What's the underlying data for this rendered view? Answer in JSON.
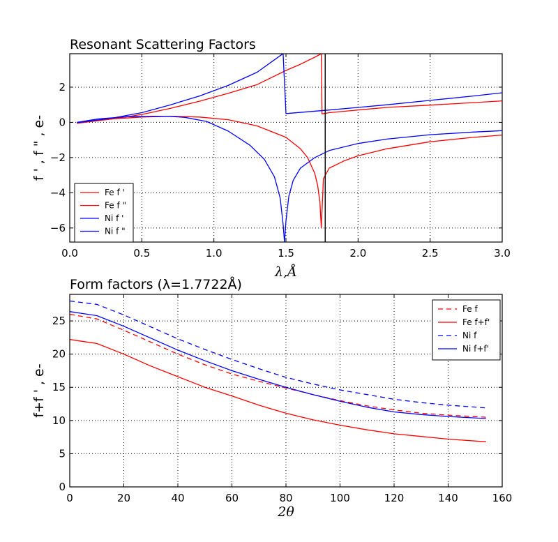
{
  "chart_data": [
    {
      "type": "line",
      "title": "Resonant Scattering Factors",
      "xlabel": "λ,Å",
      "ylabel": "f ' , f \" , e-",
      "xlim": [
        0.0,
        3.0
      ],
      "ylim": [
        -6.8,
        3.9
      ],
      "xticks": [
        0.0,
        0.5,
        1.0,
        1.5,
        2.0,
        2.5,
        3.0
      ],
      "xtick_labels": [
        "0.0",
        "0.5",
        "1.0",
        "1.5",
        "2.0",
        "2.5",
        "3.0"
      ],
      "yticks": [
        -6,
        -4,
        -2,
        0,
        2
      ],
      "ytick_labels": [
        "−6",
        "−4",
        "−2",
        "0",
        "2"
      ],
      "grid": true,
      "legend_position": "bottom-left",
      "vertical_line": {
        "x": 1.7722
      },
      "series": [
        {
          "name": "Fe f '",
          "color": "#ff0000",
          "style": "solid",
          "x": [
            0.05,
            0.3,
            0.5,
            0.7,
            0.9,
            1.1,
            1.3,
            1.5,
            1.6,
            1.65,
            1.7,
            1.72,
            1.735,
            1.745,
            1.76,
            1.8,
            1.9,
            2.0,
            2.2,
            2.5,
            2.8,
            3.0
          ],
          "y": [
            -0.05,
            0.2,
            0.3,
            0.35,
            0.3,
            0.15,
            -0.2,
            -0.85,
            -1.5,
            -2.0,
            -2.9,
            -3.6,
            -4.5,
            -6.0,
            -3.2,
            -2.6,
            -2.2,
            -1.9,
            -1.5,
            -1.1,
            -0.85,
            -0.72
          ]
        },
        {
          "name": "Fe f \"",
          "color": "#ff0000",
          "style": "solid",
          "x": [
            0.05,
            0.3,
            0.5,
            0.7,
            0.9,
            1.1,
            1.3,
            1.5,
            1.6,
            1.7,
            1.745,
            1.75,
            1.8,
            2.0,
            2.2,
            2.5,
            2.8,
            3.0
          ],
          "y": [
            -0.02,
            0.2,
            0.45,
            0.8,
            1.2,
            1.65,
            2.15,
            2.95,
            3.3,
            3.7,
            3.9,
            0.48,
            0.55,
            0.7,
            0.85,
            0.98,
            1.12,
            1.22
          ]
        },
        {
          "name": "Ni f '",
          "color": "#0000ff",
          "style": "solid",
          "x": [
            0.05,
            0.2,
            0.4,
            0.6,
            0.7,
            0.8,
            0.95,
            1.1,
            1.25,
            1.35,
            1.42,
            1.46,
            1.48,
            1.49,
            1.5,
            1.52,
            1.55,
            1.6,
            1.7,
            1.8,
            2.0,
            2.2,
            2.5,
            2.8,
            3.0
          ],
          "y": [
            0.0,
            0.2,
            0.32,
            0.35,
            0.34,
            0.28,
            0.05,
            -0.5,
            -1.3,
            -2.1,
            -3.1,
            -4.3,
            -5.8,
            -6.8,
            -5.6,
            -4.2,
            -3.3,
            -2.6,
            -2.0,
            -1.6,
            -1.2,
            -0.95,
            -0.7,
            -0.55,
            -0.47
          ]
        },
        {
          "name": "Ni f \"",
          "color": "#0000ff",
          "style": "solid",
          "x": [
            0.05,
            0.3,
            0.5,
            0.7,
            0.9,
            1.1,
            1.3,
            1.47,
            1.48,
            1.5,
            1.8,
            2.0,
            2.2,
            2.5,
            2.8,
            3.0
          ],
          "y": [
            -0.02,
            0.25,
            0.55,
            1.0,
            1.5,
            2.1,
            2.85,
            3.85,
            3.9,
            0.5,
            0.7,
            0.85,
            1.0,
            1.25,
            1.5,
            1.68
          ]
        }
      ]
    },
    {
      "type": "line",
      "title": "Form factors (λ=1.7722Å)",
      "xlabel": "2θ",
      "ylabel": "f+f ' , e-",
      "xlim": [
        0,
        160
      ],
      "ylim": [
        0,
        29
      ],
      "xticks": [
        0,
        20,
        40,
        60,
        80,
        100,
        120,
        140,
        160
      ],
      "xtick_labels": [
        "0",
        "20",
        "40",
        "60",
        "80",
        "100",
        "120",
        "140",
        "160"
      ],
      "yticks": [
        0,
        5,
        10,
        15,
        20,
        25
      ],
      "ytick_labels": [
        "0",
        "5",
        "10",
        "15",
        "20",
        "25"
      ],
      "grid": true,
      "legend_position": "top-right",
      "series": [
        {
          "name": "Fe f",
          "color": "#ff0000",
          "style": "dashed",
          "x": [
            0,
            10,
            20,
            30,
            40,
            50,
            60,
            70,
            80,
            90,
            100,
            110,
            120,
            130,
            140,
            154
          ],
          "y": [
            26.0,
            25.3,
            23.6,
            21.8,
            20.0,
            18.4,
            17.0,
            15.9,
            14.9,
            13.9,
            13.0,
            12.2,
            11.6,
            11.1,
            10.8,
            10.5
          ]
        },
        {
          "name": "Fe f+f'",
          "color": "#ff0000",
          "style": "solid",
          "x": [
            0,
            10,
            20,
            30,
            40,
            50,
            60,
            70,
            80,
            90,
            100,
            110,
            120,
            130,
            140,
            154
          ],
          "y": [
            22.2,
            21.6,
            20.0,
            18.2,
            16.6,
            15.0,
            13.7,
            12.3,
            11.1,
            10.1,
            9.3,
            8.6,
            8.0,
            7.6,
            7.2,
            6.8
          ]
        },
        {
          "name": "Ni f",
          "color": "#0000ff",
          "style": "dashed",
          "x": [
            0,
            10,
            20,
            30,
            40,
            50,
            60,
            70,
            80,
            90,
            100,
            110,
            120,
            130,
            140,
            154
          ],
          "y": [
            28.0,
            27.5,
            25.9,
            24.1,
            22.3,
            20.7,
            19.2,
            17.8,
            16.5,
            15.5,
            14.6,
            13.9,
            13.2,
            12.7,
            12.3,
            11.9
          ]
        },
        {
          "name": "Ni f+f'",
          "color": "#0000ff",
          "style": "solid",
          "x": [
            0,
            10,
            20,
            30,
            40,
            50,
            60,
            70,
            80,
            90,
            100,
            110,
            120,
            130,
            140,
            154
          ],
          "y": [
            26.4,
            25.8,
            24.2,
            22.4,
            20.6,
            19.0,
            17.5,
            16.2,
            15.0,
            13.9,
            12.9,
            12.0,
            11.3,
            10.9,
            10.6,
            10.3
          ]
        }
      ]
    }
  ]
}
